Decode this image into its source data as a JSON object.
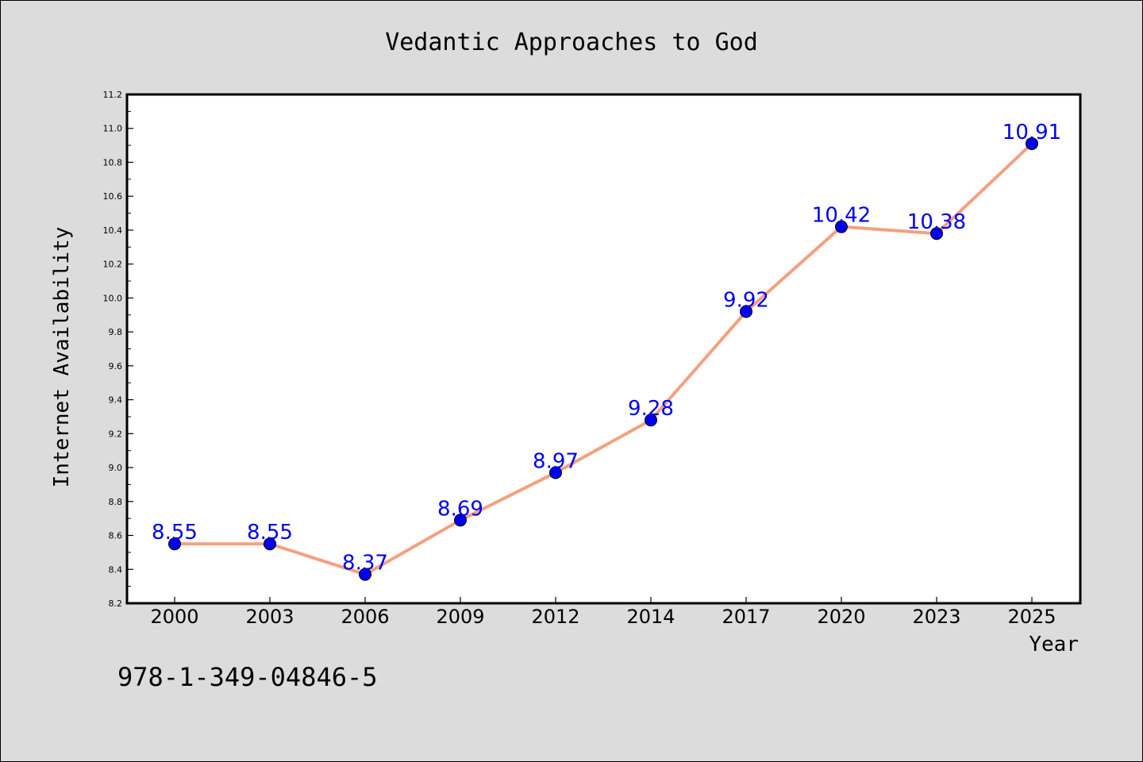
{
  "chart_data": {
    "type": "line",
    "title": "Vedantic Approaches to God",
    "xlabel": "Year",
    "ylabel": "Internet Availability",
    "categories": [
      "2000",
      "2003",
      "2006",
      "2009",
      "2012",
      "2014",
      "2017",
      "2020",
      "2023",
      "2025"
    ],
    "series": [
      {
        "values": [
          8.55,
          8.55,
          8.37,
          8.69,
          8.97,
          9.28,
          9.92,
          10.42,
          10.38,
          10.91
        ]
      }
    ],
    "data_labels": [
      "8.55",
      "8.55",
      "8.37",
      "8.69",
      "8.97",
      "9.28",
      "9.92",
      "10.42",
      "10.38",
      "10.91"
    ],
    "ylim": [
      8.2,
      11.2
    ],
    "yticks": [
      "8.2",
      "8.4",
      "8.6",
      "8.8",
      "9.0",
      "9.2",
      "9.4",
      "9.6",
      "9.8",
      "10.0",
      "10.2",
      "10.4",
      "10.6",
      "10.8",
      "11.0",
      "11.2"
    ],
    "grid": false,
    "line_color": "#f4a07f",
    "marker_color": "#0000ee",
    "label_color": "#0000ee"
  },
  "annotation": {
    "isbn": "978-1-349-04846-5"
  },
  "background": "#dcdcdc"
}
